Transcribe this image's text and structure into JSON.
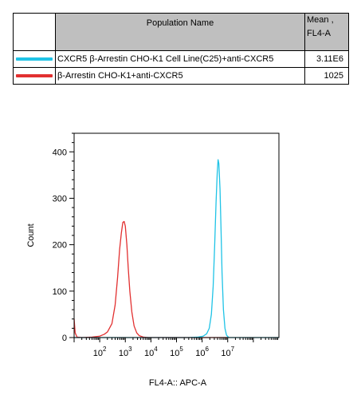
{
  "legend": {
    "header_name": "Population Name",
    "header_mean_line1": "Mean ,",
    "header_mean_line2": "FL4-A",
    "rows": [
      {
        "name": "CXCR5 β-Arrestin CHO-K1 Cell Line(C25)+anti-CXCR5",
        "mean": "3.11E6",
        "color": "#1fc3e6"
      },
      {
        "name": "β-Arrestin CHO-K1+anti-CXCR5",
        "mean": "1025",
        "color": "#e23030"
      }
    ]
  },
  "chart_data": {
    "type": "line",
    "xlabel": "FL4-A:: APC-A",
    "ylabel": "Count",
    "x_scale": "log",
    "xlim": [
      10,
      1000000000
    ],
    "ylim": [
      0,
      440
    ],
    "y_ticks": [
      0,
      100,
      200,
      300,
      400
    ],
    "x_ticks": [
      {
        "value": 100,
        "base": "10",
        "exp": "2"
      },
      {
        "value": 1000,
        "base": "10",
        "exp": "3"
      },
      {
        "value": 10000,
        "base": "10",
        "exp": "4"
      },
      {
        "value": 100000,
        "base": "10",
        "exp": "5"
      },
      {
        "value": 1000000,
        "base": "10",
        "exp": "6"
      },
      {
        "value": 10000000,
        "base": "10",
        "exp": "7"
      }
    ],
    "series": [
      {
        "name": "β-Arrestin CHO-K1+anti-CXCR5",
        "color": "#e23030",
        "points": [
          [
            10,
            40
          ],
          [
            11,
            10
          ],
          [
            13,
            1
          ],
          [
            20,
            0
          ],
          [
            50,
            1
          ],
          [
            100,
            3
          ],
          [
            150,
            7
          ],
          [
            200,
            12
          ],
          [
            300,
            30
          ],
          [
            400,
            70
          ],
          [
            500,
            130
          ],
          [
            600,
            190
          ],
          [
            700,
            225
          ],
          [
            800,
            248
          ],
          [
            900,
            250
          ],
          [
            1000,
            240
          ],
          [
            1150,
            200
          ],
          [
            1300,
            150
          ],
          [
            1500,
            100
          ],
          [
            1800,
            55
          ],
          [
            2200,
            25
          ],
          [
            2800,
            10
          ],
          [
            3500,
            4
          ],
          [
            5000,
            1
          ],
          [
            8000,
            0
          ],
          [
            10000000,
            0
          ]
        ]
      },
      {
        "name": "CXCR5 β-Arrestin CHO-K1 Cell Line(C25)+anti-CXCR5",
        "color": "#1fc3e6",
        "points": [
          [
            10,
            0
          ],
          [
            300000,
            0
          ],
          [
            700000,
            1
          ],
          [
            1100000,
            3
          ],
          [
            1500000,
            8
          ],
          [
            1900000,
            20
          ],
          [
            2300000,
            50
          ],
          [
            2700000,
            110
          ],
          [
            3100000,
            200
          ],
          [
            3500000,
            290
          ],
          [
            3900000,
            355
          ],
          [
            4200000,
            383
          ],
          [
            4500000,
            375
          ],
          [
            5000000,
            320
          ],
          [
            5500000,
            230
          ],
          [
            6000000,
            140
          ],
          [
            6800000,
            60
          ],
          [
            7800000,
            20
          ],
          [
            9000000,
            5
          ],
          [
            11000000,
            0
          ],
          [
            1000000000,
            0
          ]
        ]
      }
    ]
  }
}
